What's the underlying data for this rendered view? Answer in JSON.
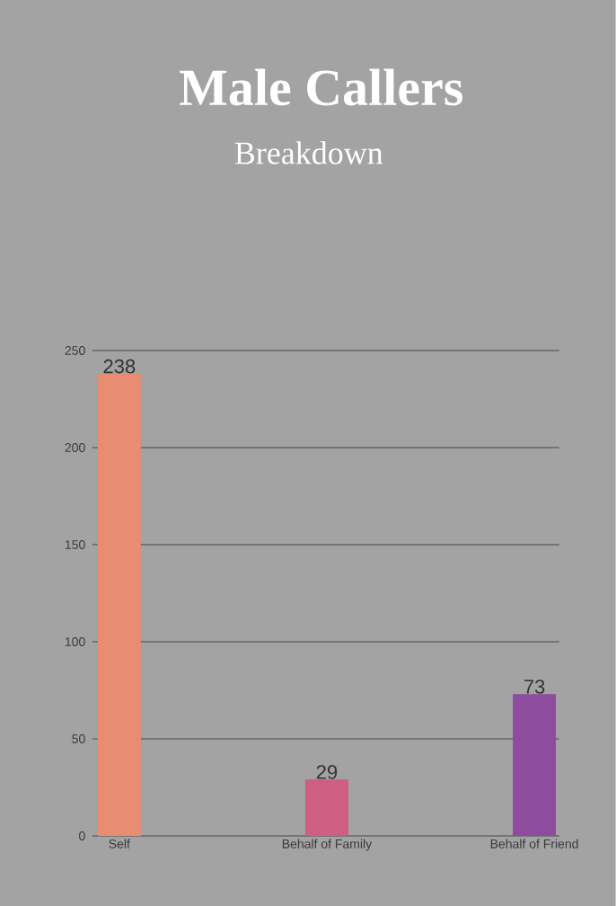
{
  "chart_data": {
    "type": "bar",
    "title": "Male Callers",
    "subtitle": "Breakdown",
    "categories": [
      "Self",
      "Behalf of Family",
      "Behalf of Friend"
    ],
    "values": [
      238,
      29,
      73
    ],
    "colors": [
      "#e88c72",
      "#cf5f82",
      "#8e4c9e"
    ],
    "ylim": [
      0,
      250
    ],
    "yticks": [
      0,
      50,
      100,
      150,
      200,
      250
    ],
    "grid": "y",
    "data_labels": true
  }
}
